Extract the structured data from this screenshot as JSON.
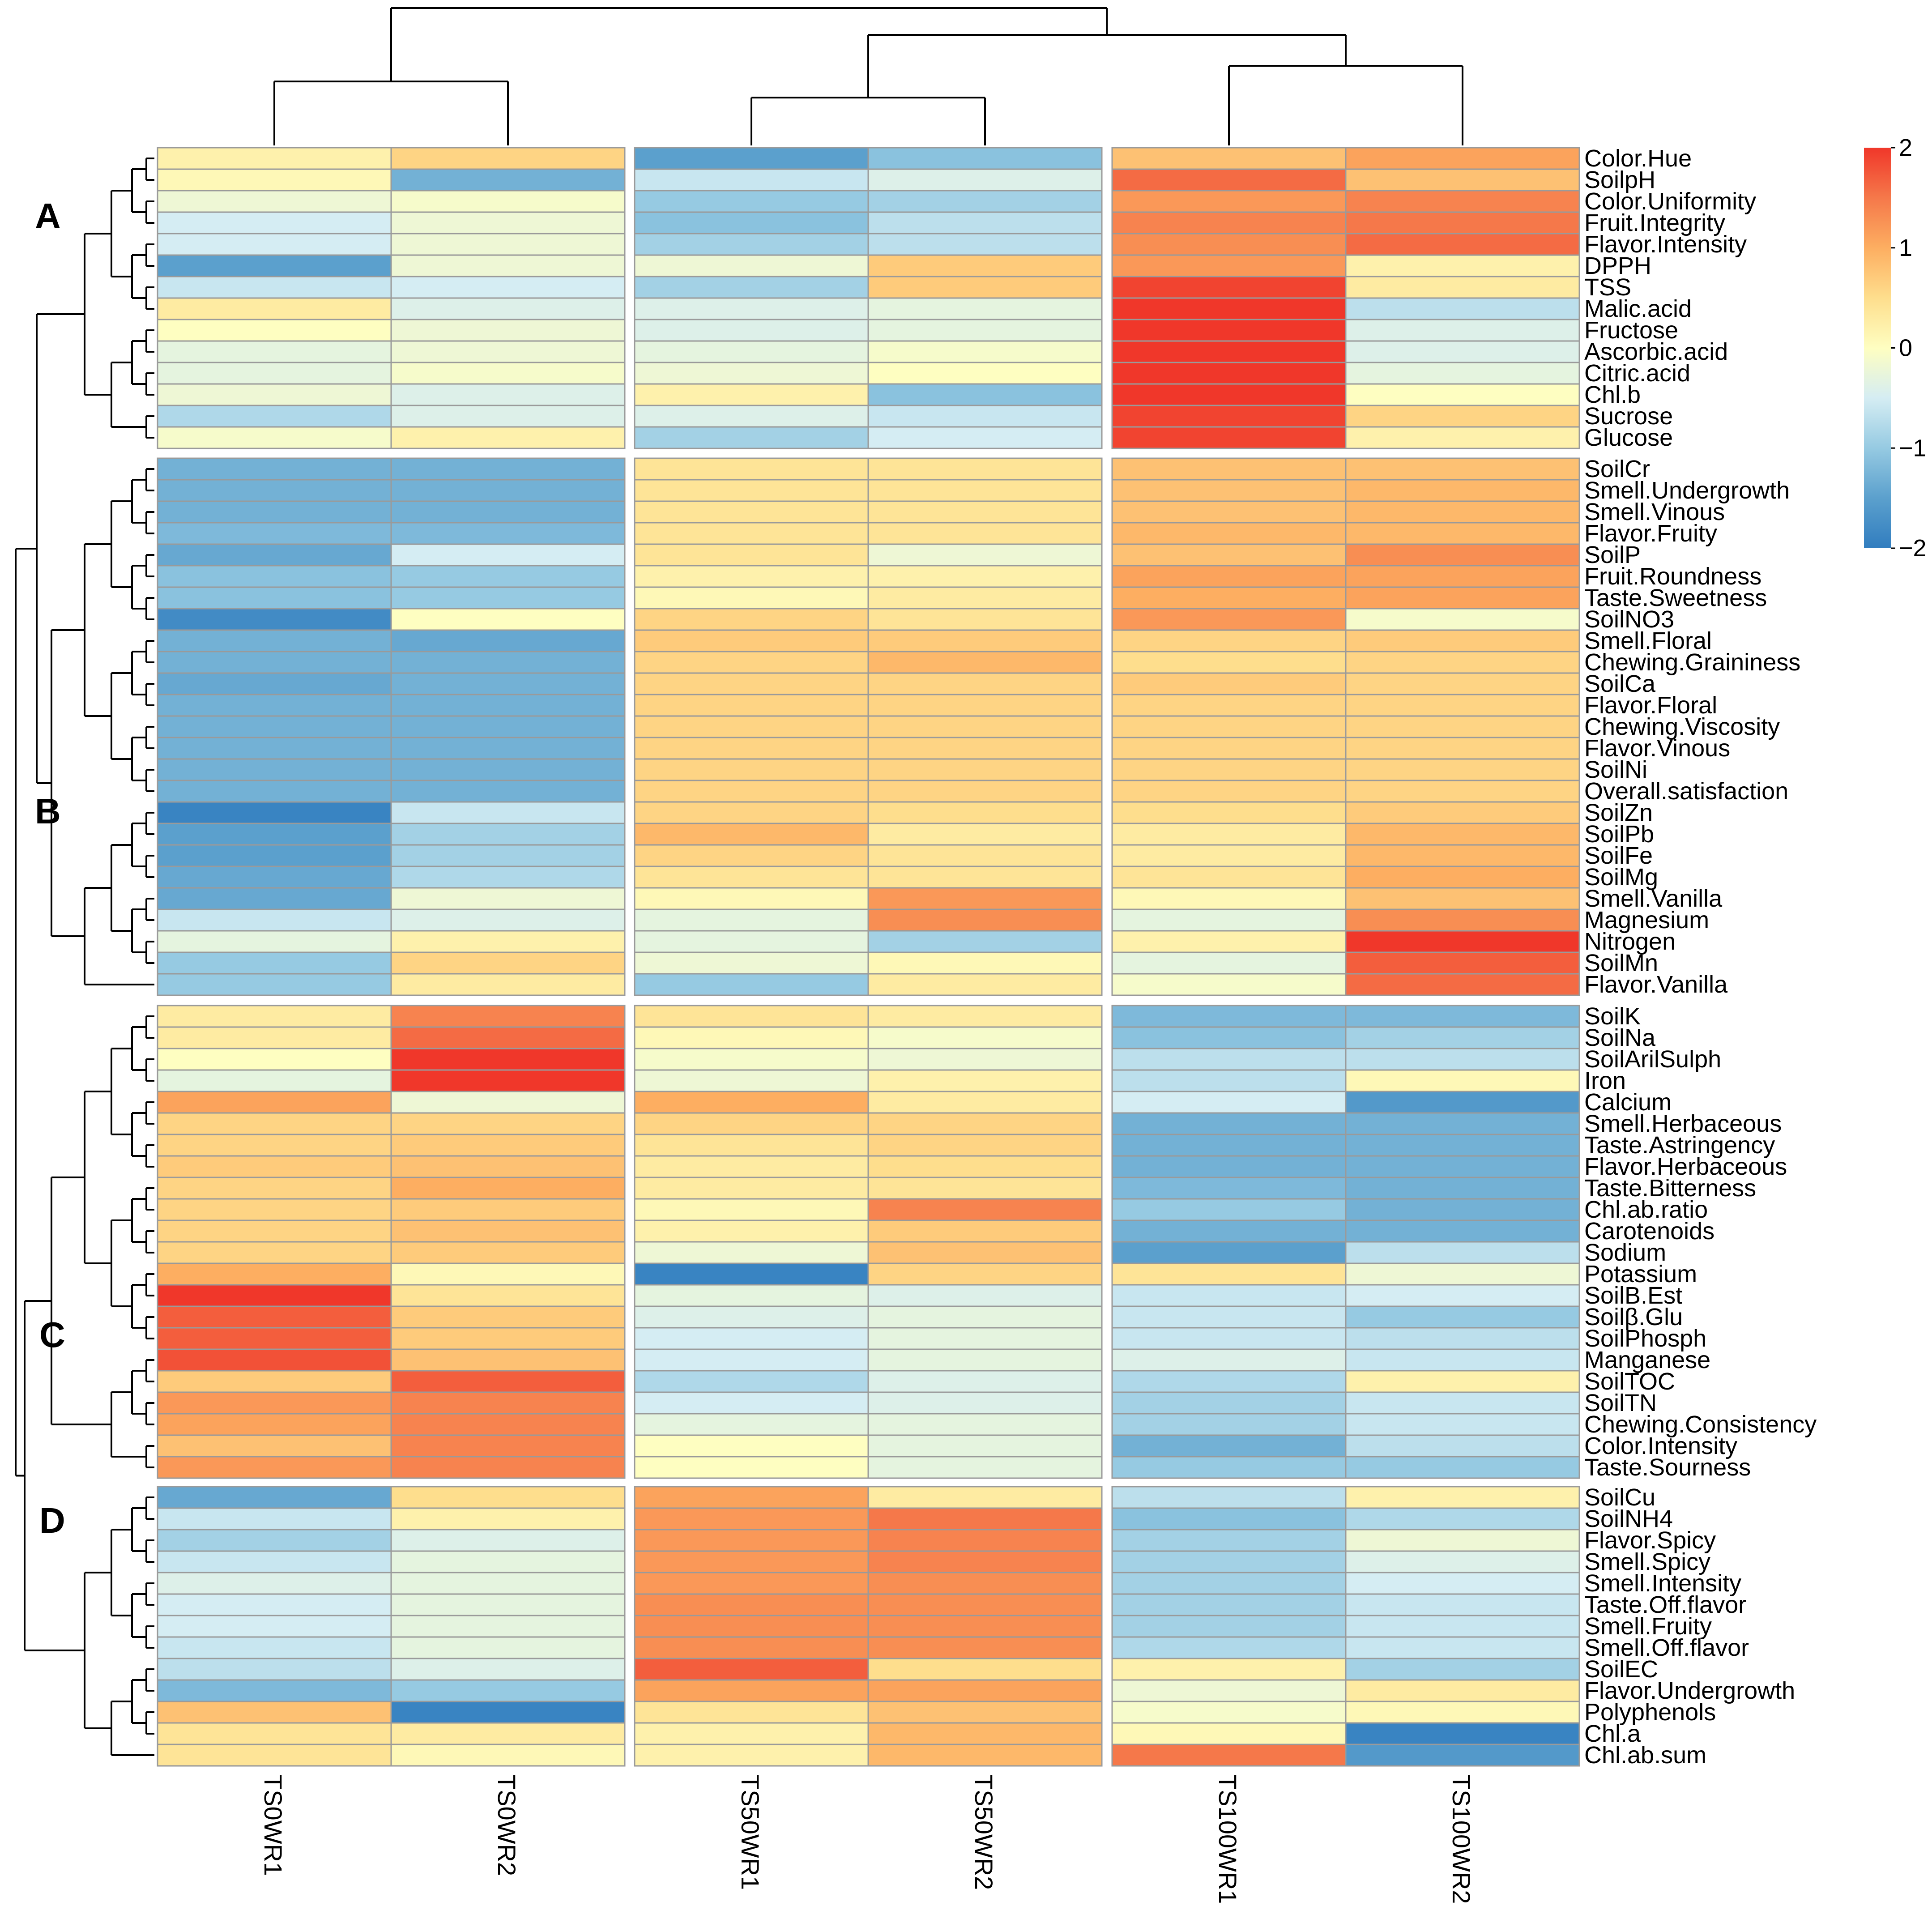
{
  "chart_data": {
    "type": "heatmap",
    "columns": [
      "TS0WR1",
      "TS0WR2",
      "TS50WR1",
      "TS50WR2",
      "TS100WR1",
      "TS100WR2"
    ],
    "column_groups": [
      [
        "TS0WR1",
        "TS0WR2"
      ],
      [
        "TS50WR1",
        "TS50WR2"
      ],
      [
        "TS100WR1",
        "TS100WR2"
      ]
    ],
    "clusters": [
      {
        "label": "A",
        "rows": [
          {
            "name": "Color.Hue",
            "values": [
              0.2,
              0.6,
              -1.5,
              -1.1,
              0.8,
              1.1
            ]
          },
          {
            "name": "SoilpH",
            "values": [
              0.1,
              -1.3,
              -0.6,
              -0.4,
              1.6,
              0.8
            ]
          },
          {
            "name": "Color.Uniformity",
            "values": [
              -0.2,
              -0.1,
              -1.0,
              -0.9,
              1.2,
              1.4
            ]
          },
          {
            "name": "Fruit.Integrity",
            "values": [
              -0.5,
              -0.2,
              -1.1,
              -0.7,
              1.4,
              1.5
            ]
          },
          {
            "name": "Flavor.Intensity",
            "values": [
              -0.5,
              -0.2,
              -0.9,
              -0.7,
              1.3,
              1.6
            ]
          },
          {
            "name": "DPPH",
            "values": [
              -1.5,
              -0.2,
              -0.2,
              0.7,
              1.2,
              0.2
            ]
          },
          {
            "name": "TSS",
            "values": [
              -0.6,
              -0.5,
              -0.9,
              0.7,
              1.9,
              0.3
            ]
          },
          {
            "name": "Malic.acid",
            "values": [
              0.3,
              -0.4,
              -0.4,
              -0.3,
              2.0,
              -0.7
            ]
          },
          {
            "name": "Fructose",
            "values": [
              0.0,
              -0.2,
              -0.4,
              -0.3,
              2.0,
              -0.4
            ]
          },
          {
            "name": "Ascorbic.acid",
            "values": [
              -0.3,
              -0.2,
              -0.3,
              -0.1,
              2.0,
              -0.4
            ]
          },
          {
            "name": "Citric.acid",
            "values": [
              -0.3,
              -0.1,
              -0.2,
              0.0,
              2.0,
              -0.3
            ]
          },
          {
            "name": "Chl.b",
            "values": [
              -0.2,
              -0.4,
              0.2,
              -1.1,
              2.0,
              0.0
            ]
          },
          {
            "name": "Sucrose",
            "values": [
              -0.8,
              -0.4,
              -0.4,
              -0.6,
              1.9,
              0.6
            ]
          },
          {
            "name": "Glucose",
            "values": [
              -0.1,
              0.2,
              -0.9,
              -0.5,
              1.9,
              0.2
            ]
          }
        ]
      },
      {
        "label": "B",
        "rows": [
          {
            "name": "SoilCr",
            "values": [
              -1.3,
              -1.3,
              0.4,
              0.4,
              0.8,
              0.8
            ]
          },
          {
            "name": "Smell.Undergrowth",
            "values": [
              -1.3,
              -1.3,
              0.4,
              0.4,
              0.8,
              0.9
            ]
          },
          {
            "name": "Smell.Vinous",
            "values": [
              -1.3,
              -1.3,
              0.4,
              0.4,
              0.8,
              0.9
            ]
          },
          {
            "name": "Flavor.Fruity",
            "values": [
              -1.2,
              -1.2,
              0.4,
              0.4,
              0.9,
              0.9
            ]
          },
          {
            "name": "SoilP",
            "values": [
              -1.4,
              -0.5,
              0.4,
              -0.2,
              0.8,
              1.3
            ]
          },
          {
            "name": "Fruit.Roundness",
            "values": [
              -1.1,
              -1.0,
              0.2,
              0.2,
              1.1,
              1.1
            ]
          },
          {
            "name": "Taste.Sweetness",
            "values": [
              -1.1,
              -1.0,
              0.1,
              0.3,
              1.0,
              1.1
            ]
          },
          {
            "name": "SoilNO3",
            "values": [
              -1.8,
              0.0,
              0.6,
              0.4,
              1.2,
              -0.1
            ]
          },
          {
            "name": "Smell.Floral",
            "values": [
              -1.3,
              -1.4,
              0.7,
              0.7,
              0.6,
              0.7
            ]
          },
          {
            "name": "Chewing.Graininess",
            "values": [
              -1.3,
              -1.3,
              0.6,
              0.9,
              0.5,
              0.6
            ]
          },
          {
            "name": "SoilCa",
            "values": [
              -1.4,
              -1.3,
              0.6,
              0.6,
              0.7,
              0.6
            ]
          },
          {
            "name": "Flavor.Floral",
            "values": [
              -1.3,
              -1.3,
              0.6,
              0.6,
              0.6,
              0.6
            ]
          },
          {
            "name": "Chewing.Viscosity",
            "values": [
              -1.3,
              -1.3,
              0.6,
              0.6,
              0.6,
              0.6
            ]
          },
          {
            "name": "Flavor.Vinous",
            "values": [
              -1.3,
              -1.3,
              0.6,
              0.6,
              0.6,
              0.6
            ]
          },
          {
            "name": "SoilNi",
            "values": [
              -1.3,
              -1.3,
              0.6,
              0.6,
              0.6,
              0.6
            ]
          },
          {
            "name": "Overall.satisfaction",
            "values": [
              -1.3,
              -1.3,
              0.6,
              0.6,
              0.6,
              0.6
            ]
          },
          {
            "name": "SoilZn",
            "values": [
              -1.9,
              -0.6,
              0.6,
              0.5,
              0.5,
              0.7
            ]
          },
          {
            "name": "SoilPb",
            "values": [
              -1.5,
              -0.9,
              0.9,
              0.3,
              0.3,
              0.9
            ]
          },
          {
            "name": "SoilFe",
            "values": [
              -1.5,
              -0.9,
              0.6,
              0.4,
              0.3,
              0.9
            ]
          },
          {
            "name": "SoilMg",
            "values": [
              -1.4,
              -0.8,
              0.4,
              0.4,
              0.4,
              1.0
            ]
          },
          {
            "name": "Smell.Vanilla",
            "values": [
              -1.4,
              -0.2,
              0.1,
              1.2,
              0.1,
              0.8
            ]
          },
          {
            "name": "Magnesium",
            "values": [
              -0.6,
              -0.4,
              -0.3,
              1.3,
              -0.3,
              1.3
            ]
          },
          {
            "name": "Nitrogen",
            "values": [
              -0.3,
              0.2,
              -0.3,
              -0.9,
              0.2,
              2.0
            ]
          },
          {
            "name": "SoilMn",
            "values": [
              -1.0,
              0.6,
              -0.2,
              0.1,
              -0.3,
              1.7
            ]
          },
          {
            "name": "Flavor.Vanilla",
            "values": [
              -1.0,
              0.3,
              -1.0,
              0.3,
              -0.1,
              1.6
            ]
          }
        ]
      },
      {
        "label": "C",
        "rows": [
          {
            "name": "SoilK",
            "values": [
              0.3,
              1.4,
              0.4,
              0.3,
              -1.2,
              -1.2
            ]
          },
          {
            "name": "SoilNa",
            "values": [
              0.3,
              1.6,
              0.1,
              -0.1,
              -1.1,
              -0.9
            ]
          },
          {
            "name": "SoilArilSulph",
            "values": [
              0.0,
              2.0,
              -0.1,
              -0.2,
              -0.7,
              -0.7
            ]
          },
          {
            "name": "Iron",
            "values": [
              -0.3,
              2.0,
              -0.2,
              0.2,
              -0.7,
              0.1
            ]
          },
          {
            "name": "Calcium",
            "values": [
              1.1,
              -0.2,
              1.0,
              0.3,
              -0.5,
              -1.6
            ]
          },
          {
            "name": "Smell.Herbaceous",
            "values": [
              0.6,
              0.6,
              0.6,
              0.6,
              -1.3,
              -1.3
            ]
          },
          {
            "name": "Taste.Astringency",
            "values": [
              0.6,
              0.7,
              0.4,
              0.6,
              -1.3,
              -1.3
            ]
          },
          {
            "name": "Flavor.Herbaceous",
            "values": [
              0.7,
              0.8,
              0.3,
              0.5,
              -1.3,
              -1.3
            ]
          },
          {
            "name": "Taste.Bitterness",
            "values": [
              0.6,
              1.0,
              0.3,
              0.4,
              -1.2,
              -1.3
            ]
          },
          {
            "name": "Chl.ab.ratio",
            "values": [
              0.6,
              0.7,
              0.1,
              1.4,
              -1.0,
              -1.3
            ]
          },
          {
            "name": "Carotenoids",
            "values": [
              0.6,
              0.8,
              0.2,
              0.7,
              -1.3,
              -1.3
            ]
          },
          {
            "name": "Sodium",
            "values": [
              0.6,
              0.7,
              -0.2,
              0.8,
              -1.5,
              -0.7
            ]
          },
          {
            "name": "Potassium",
            "values": [
              1.0,
              0.1,
              -1.9,
              0.6,
              0.4,
              -0.2
            ]
          },
          {
            "name": "SoilB.Est",
            "values": [
              2.0,
              0.4,
              -0.3,
              -0.4,
              -0.6,
              -0.5
            ]
          },
          {
            "name": "Soilβ.Glu",
            "values": [
              1.7,
              0.7,
              -0.4,
              -0.3,
              -0.6,
              -1.0
            ]
          },
          {
            "name": "SoilPhosph",
            "values": [
              1.7,
              0.7,
              -0.5,
              -0.3,
              -0.6,
              -0.7
            ]
          },
          {
            "name": "Manganese",
            "values": [
              1.8,
              0.8,
              -0.5,
              -0.3,
              -0.4,
              -0.6
            ]
          },
          {
            "name": "SoilTOC",
            "values": [
              0.7,
              1.7,
              -0.8,
              -0.4,
              -0.8,
              0.2
            ]
          },
          {
            "name": "SoilTN",
            "values": [
              1.2,
              1.4,
              -0.5,
              -0.4,
              -0.9,
              -0.6
            ]
          },
          {
            "name": "Chewing.Consistency",
            "values": [
              1.1,
              1.4,
              -0.3,
              -0.3,
              -0.9,
              -0.6
            ]
          },
          {
            "name": "Color.Intensity",
            "values": [
              0.8,
              1.4,
              0.0,
              -0.3,
              -1.3,
              -0.7
            ]
          },
          {
            "name": "Taste.Sourness",
            "values": [
              1.2,
              1.4,
              0.0,
              -0.3,
              -1.0,
              -1.0
            ]
          }
        ]
      },
      {
        "label": "D",
        "rows": [
          {
            "name": "SoilCu",
            "values": [
              -1.4,
              0.5,
              1.1,
              0.3,
              -0.7,
              0.2
            ]
          },
          {
            "name": "SoilNH4",
            "values": [
              -0.6,
              0.2,
              1.2,
              1.5,
              -1.1,
              -0.8
            ]
          },
          {
            "name": "Flavor.Spicy",
            "values": [
              -0.9,
              -0.4,
              1.2,
              1.4,
              -0.9,
              -0.2
            ]
          },
          {
            "name": "Smell.Spicy",
            "values": [
              -0.6,
              -0.3,
              1.2,
              1.4,
              -0.9,
              -0.4
            ]
          },
          {
            "name": "Smell.Intensity",
            "values": [
              -0.4,
              -0.3,
              1.2,
              1.3,
              -0.9,
              -0.5
            ]
          },
          {
            "name": "Taste.Off.flavor",
            "values": [
              -0.5,
              -0.3,
              1.3,
              1.3,
              -0.9,
              -0.6
            ]
          },
          {
            "name": "Smell.Fruity",
            "values": [
              -0.5,
              -0.3,
              1.3,
              1.3,
              -0.9,
              -0.6
            ]
          },
          {
            "name": "Smell.Off.flavor",
            "values": [
              -0.6,
              -0.3,
              1.3,
              1.3,
              -0.8,
              -0.6
            ]
          },
          {
            "name": "SoilEC",
            "values": [
              -0.7,
              -0.4,
              1.7,
              0.5,
              0.2,
              -0.9
            ]
          },
          {
            "name": "Flavor.Undergrowth",
            "values": [
              -1.2,
              -1.0,
              1.1,
              1.1,
              -0.2,
              0.3
            ]
          },
          {
            "name": "Polyphenols",
            "values": [
              0.8,
              -1.9,
              0.4,
              0.8,
              -0.1,
              0.1
            ]
          },
          {
            "name": "Chl.a",
            "values": [
              0.4,
              0.3,
              0.2,
              0.9,
              0.1,
              -1.9
            ]
          },
          {
            "name": "Chl.ab.sum",
            "values": [
              0.4,
              0.1,
              0.2,
              0.9,
              1.5,
              -1.6
            ]
          }
        ]
      }
    ],
    "legend": {
      "ticks": [
        2,
        1,
        0,
        -1,
        -2
      ],
      "range": [
        -2,
        2
      ],
      "colors": [
        "#d73027",
        "#fc8d59",
        "#fee090",
        "#ffffbf",
        "#e0f3f8",
        "#91bfdb",
        "#4575b4"
      ]
    },
    "xlabel": "",
    "ylabel": ""
  }
}
